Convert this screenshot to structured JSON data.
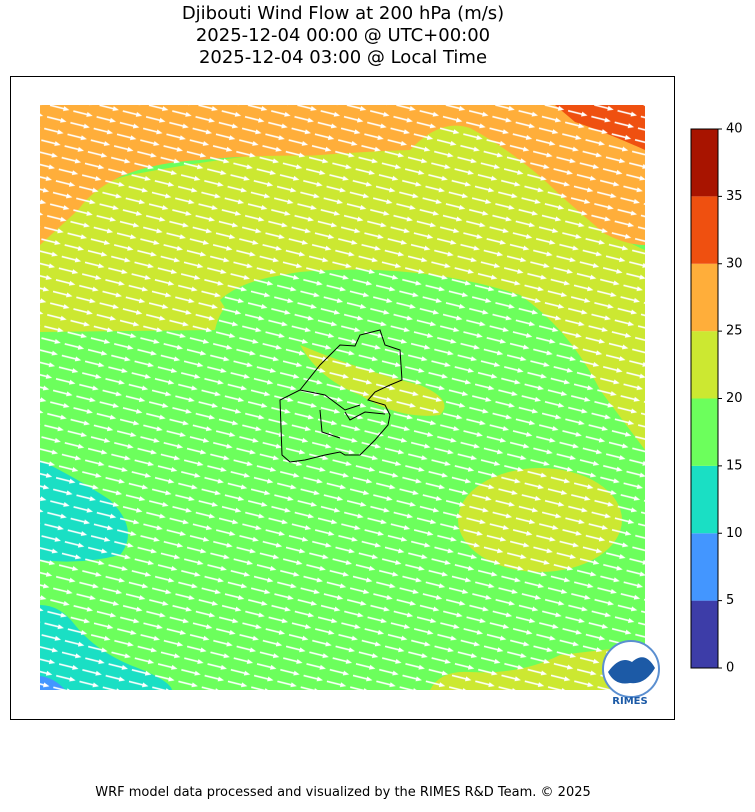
{
  "title": [
    "Djibouti Wind Flow at 200 hPa (m/s)",
    "2025-12-04 00:00 @ UTC+00:00",
    "2025-12-04 03:00 @ Local Time"
  ],
  "colorbar": {
    "bounds": [
      0,
      5,
      10,
      15,
      20,
      25,
      30,
      35,
      40
    ],
    "colors": [
      "#3d3da8",
      "#4396ff",
      "#1adfc4",
      "#6cff5c",
      "#cce831",
      "#ffae3a",
      "#ef5010",
      "#a81400"
    ],
    "ticks": [
      0,
      5,
      10,
      15,
      20,
      25,
      30,
      35,
      40
    ]
  },
  "logo": "RIMES",
  "footer": "WRF model data processed and visualized by the RIMES R&D Team. © 2025"
}
